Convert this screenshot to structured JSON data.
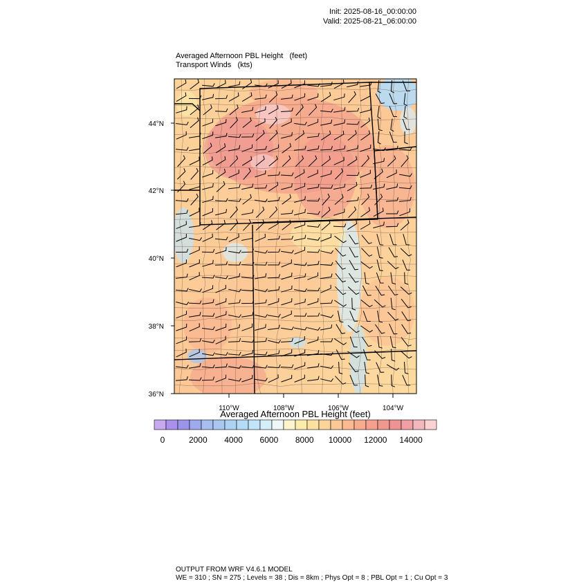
{
  "header": {
    "init": "Init: 2025-08-16_00:00:00",
    "valid": "Valid: 2025-08-21_06:00:00"
  },
  "titles": {
    "field": "Averaged Afternoon PBL Height   (feet)",
    "winds": "Transport Winds   (kts)"
  },
  "map": {
    "lat_labels": [
      "44°N",
      "42°N",
      "40°N",
      "38°N",
      "36°N"
    ],
    "lon_labels": [
      "110°W",
      "108°W",
      "106°W",
      "104°W"
    ]
  },
  "colorbar": {
    "title": "Averaged Afternoon PBL Height  (feet)",
    "tick_labels": [
      "0",
      "2000",
      "4000",
      "6000",
      "8000",
      "10000",
      "12000",
      "14000"
    ],
    "colors": [
      "#c8a8f0",
      "#aa90ee",
      "#9a94ea",
      "#9eaaf0",
      "#a6bef0",
      "#a8c8f2",
      "#acd2f4",
      "#b4dcf6",
      "#c2e4f8",
      "#d4eefa",
      "#eef8f8",
      "#fcf4cc",
      "#fcecac",
      "#fce0a0",
      "#fcd49a",
      "#fcc896",
      "#fcba90",
      "#f8ac8e",
      "#f4a08c",
      "#f0988e",
      "#ee9292",
      "#f0a0a4",
      "#f4b8bc",
      "#fad2d4"
    ]
  },
  "footer": {
    "line1": "OUTPUT FROM WRF V4.6.1 MODEL",
    "line2": "WE = 310 ; SN = 275 ; Levels = 38 ; Dis = 8km ; Phys Opt = 8 ; PBL Opt = 1 ; Cu Opt = 3"
  }
}
